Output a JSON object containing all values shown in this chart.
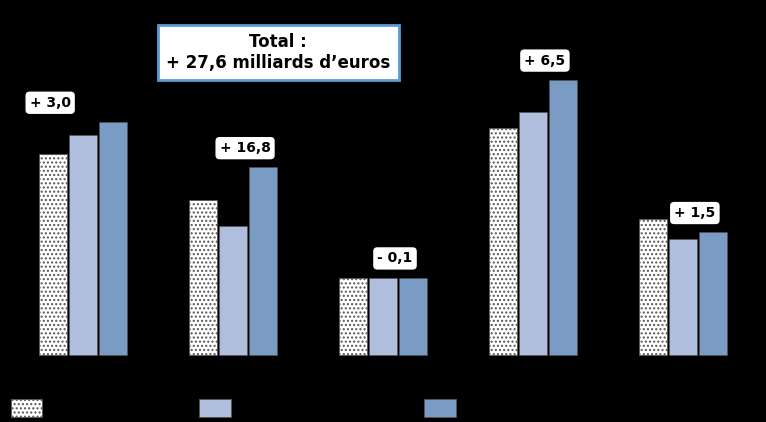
{
  "groups": [
    {
      "label": "+ 3,0",
      "bars": [
        0.62,
        0.68,
        0.72
      ]
    },
    {
      "label": "+ 16,8",
      "bars": [
        0.48,
        0.4,
        0.58
      ]
    },
    {
      "label": "- 0,1",
      "bars": [
        0.24,
        0.24,
        0.24
      ]
    },
    {
      "label": "+ 6,5",
      "bars": [
        0.7,
        0.75,
        0.85
      ]
    },
    {
      "label": "+ 1,5",
      "bars": [
        0.42,
        0.36,
        0.38
      ]
    }
  ],
  "bar_colors": [
    "dotted",
    "#b0bedd",
    "#7a9bc4"
  ],
  "background_color": "#000000",
  "plot_bg": "#000000",
  "annotation_text": "Total :\n+ 27,6 milliards d’euros",
  "annotation_box_color": "#ffffff",
  "annotation_border_color": "#5b9bd5",
  "bubble_bg": "#ffffff",
  "bubble_text_color": "#000000"
}
